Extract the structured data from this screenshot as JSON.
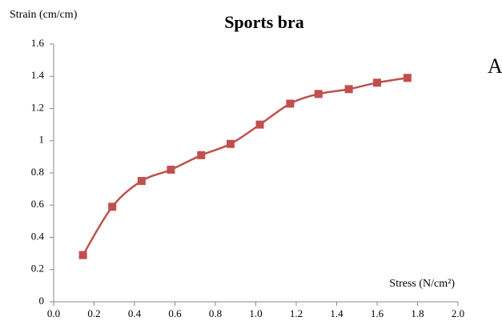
{
  "chart_data": {
    "type": "line",
    "title": "Sports bra",
    "y_label": "Strain (cm/cm)",
    "x_label": "Stress  (N/cm²)",
    "annotation": "A",
    "x": [
      0.145,
      0.29,
      0.435,
      0.58,
      0.73,
      0.875,
      1.02,
      1.17,
      1.31,
      1.46,
      1.6,
      1.75
    ],
    "series": [
      {
        "color": "#c0504d",
        "values": [
          0.29,
          0.59,
          0.75,
          0.82,
          0.91,
          0.98,
          1.1,
          1.23,
          1.29,
          1.32,
          1.36,
          1.39
        ]
      }
    ],
    "xlim": [
      0,
      2
    ],
    "ylim": [
      0,
      1.6
    ],
    "xticks": [
      {
        "value": 0,
        "label": "0.0"
      },
      0.2,
      0.4,
      0.6,
      0.8,
      {
        "value": 1,
        "label": "1.0"
      },
      1.2,
      1.4,
      1.6,
      1.8,
      {
        "value": 2,
        "label": "2.0"
      }
    ],
    "yticks": [
      0,
      0.2,
      0.4,
      0.6,
      0.8,
      1,
      1.2,
      1.4,
      1.6
    ],
    "grid": false,
    "smooth": true,
    "marker": "square"
  }
}
